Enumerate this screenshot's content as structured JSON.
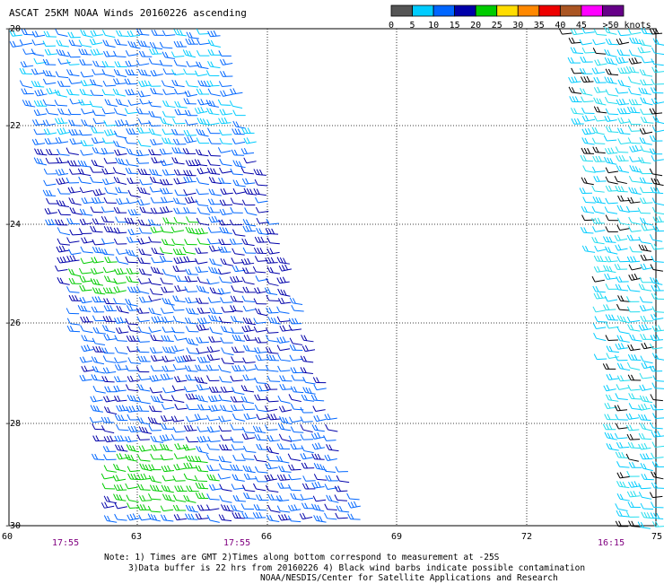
{
  "title": "ASCAT 25KM NOAA Winds 20160226 ascending",
  "colorbar": {
    "bins": [
      {
        "label": "0",
        "color": "#555555"
      },
      {
        "label": "5",
        "color": "#00ccff"
      },
      {
        "label": "10",
        "color": "#0066ff"
      },
      {
        "label": "15",
        "color": "#0000aa"
      },
      {
        "label": "20",
        "color": "#00cc00"
      },
      {
        "label": "25",
        "color": "#ffdd00"
      },
      {
        "label": "30",
        "color": "#ff8800"
      },
      {
        "label": "35",
        "color": "#ee0000"
      },
      {
        "label": "40",
        "color": "#aa5522"
      },
      {
        "label": "45",
        "color": "#ff00ff"
      },
      {
        "label": ">50 knots",
        "color": "#660088"
      }
    ]
  },
  "lat_labels": [
    "-20",
    "-22",
    "-24",
    "-26",
    "-28",
    "-30"
  ],
  "lon_labels": [
    "60",
    "63",
    "66",
    "69",
    "72",
    "75"
  ],
  "times": [
    "17:55",
    "17:55",
    "16:15"
  ],
  "notes": {
    "line1": "Note: 1) Times are GMT 2)Times along bottom correspond to measurement at -25S",
    "line2": "3)Data buffer is 22 hrs from 20160226 4) Black wind barbs indicate possible contamination",
    "line3": "NOAA/NESDIS/Center for Satellite Applications and Research"
  }
}
